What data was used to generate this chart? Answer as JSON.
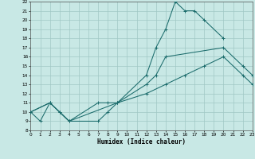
{
  "xlabel": "Humidex (Indice chaleur)",
  "xlim": [
    0,
    23
  ],
  "ylim": [
    8,
    22
  ],
  "xticks": [
    0,
    1,
    2,
    3,
    4,
    5,
    6,
    7,
    8,
    9,
    10,
    11,
    12,
    13,
    14,
    15,
    16,
    17,
    18,
    19,
    20,
    21,
    22,
    23
  ],
  "yticks": [
    8,
    9,
    10,
    11,
    12,
    13,
    14,
    15,
    16,
    17,
    18,
    19,
    20,
    21,
    22
  ],
  "bg_color": "#c8e8e5",
  "grid_color": "#a0c8c5",
  "line_color": "#1a6b6b",
  "line1_x": [
    0,
    1,
    2,
    3,
    4,
    7,
    8,
    9,
    12,
    13,
    14,
    15,
    16,
    17,
    18,
    20
  ],
  "line1_y": [
    10,
    9,
    11,
    10,
    9,
    9,
    10,
    11,
    14,
    17,
    19,
    22,
    21,
    21,
    20,
    18
  ],
  "line2_x": [
    0,
    2,
    3,
    4,
    7,
    8,
    9,
    12,
    13,
    14,
    20,
    22,
    23
  ],
  "line2_y": [
    10,
    11,
    10,
    9,
    11,
    11,
    11,
    13,
    14,
    16,
    17,
    15,
    14
  ],
  "line3_x": [
    0,
    2,
    4,
    9,
    12,
    14,
    16,
    18,
    20,
    22,
    23
  ],
  "line3_y": [
    10,
    11,
    9,
    11,
    12,
    13,
    14,
    15,
    16,
    14,
    13
  ]
}
